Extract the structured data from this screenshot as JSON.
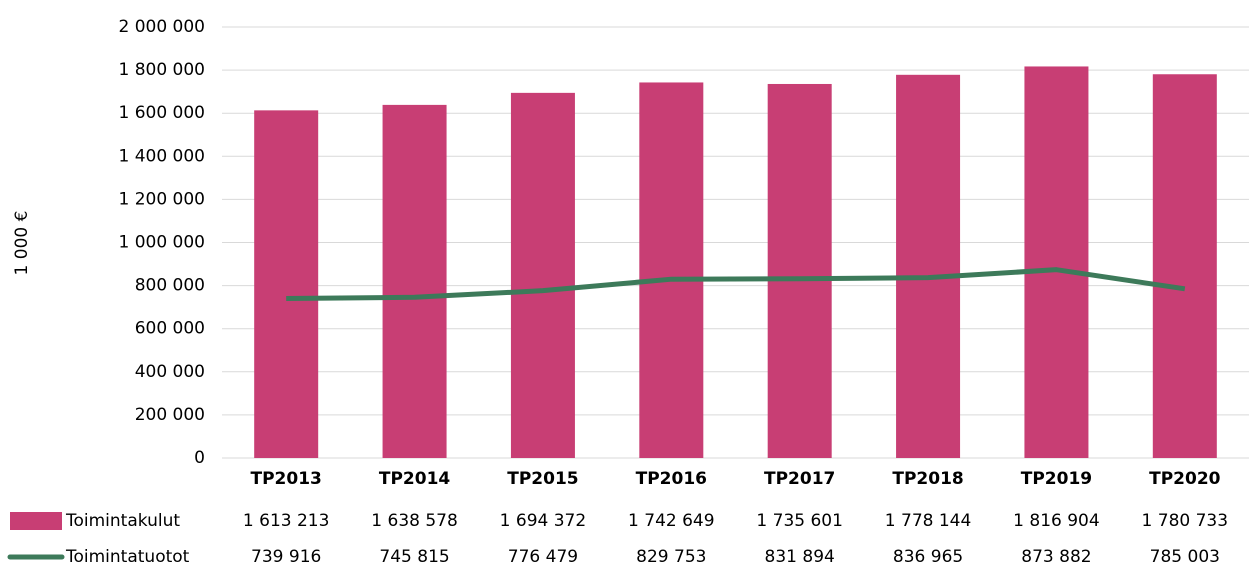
{
  "chart_data": {
    "type": "bar",
    "y_axis_label": "1 000 €",
    "categories": [
      "TP2013",
      "TP2014",
      "TP2015",
      "TP2016",
      "TP2017",
      "TP2018",
      "TP2019",
      "TP2020"
    ],
    "series": [
      {
        "name": "Toimintakulut",
        "type": "bar",
        "color": "#c83e74",
        "values": [
          1613213,
          1638578,
          1694372,
          1742649,
          1735601,
          1778144,
          1816904,
          1780733
        ],
        "value_labels": [
          "1 613 213",
          "1 638 578",
          "1 694 372",
          "1 742 649",
          "1 735 601",
          "1 778 144",
          "1 816 904",
          "1 780 733"
        ]
      },
      {
        "name": "Toimintatuotot",
        "type": "line",
        "color": "#3d7a5a",
        "values": [
          739916,
          745815,
          776479,
          829753,
          831894,
          836965,
          873882,
          785003
        ],
        "value_labels": [
          "739 916",
          "745 815",
          "776 479",
          "829 753",
          "831 894",
          "836 965",
          "873 882",
          "785 003"
        ]
      }
    ],
    "ylim": [
      0,
      2000000
    ],
    "yticks": [
      0,
      {
        "value": 200000,
        "label": "200 000"
      },
      {
        "value": 400000,
        "label": "400 000"
      },
      {
        "value": 600000,
        "label": "600 000"
      },
      {
        "value": 800000,
        "label": "800 000"
      },
      {
        "value": 1000000,
        "label": "1 000 000"
      },
      {
        "value": 1200000,
        "label": "1 200 000"
      },
      {
        "value": 1400000,
        "label": "1 400 000"
      },
      {
        "value": 1600000,
        "label": "1 600 000"
      },
      {
        "value": 1800000,
        "label": "1 800 000"
      },
      {
        "value": 2000000,
        "label": "2 000 000"
      }
    ],
    "grid": true
  }
}
